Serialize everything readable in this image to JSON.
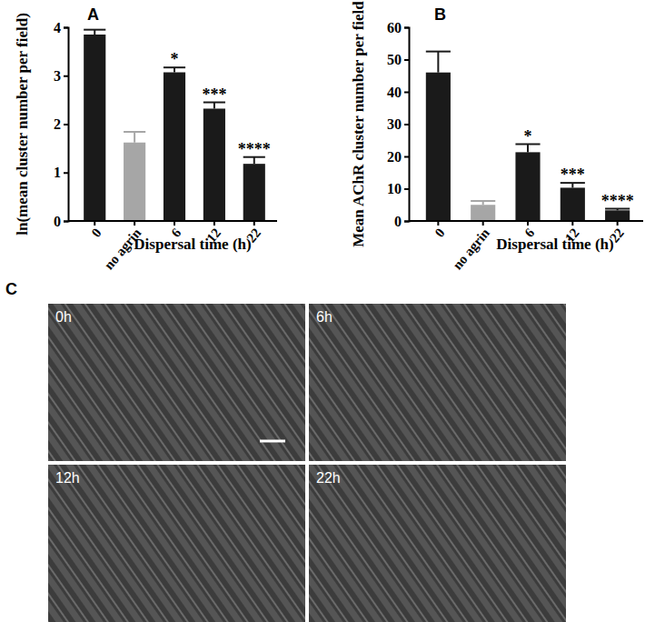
{
  "chart_data": [
    {
      "type": "bar",
      "y_label": "ln(mean cluster number per field)",
      "x_label": "Dispersal time (h)",
      "categories": [
        "0",
        "no agrin",
        "6",
        "12",
        "22"
      ],
      "values": [
        3.85,
        1.62,
        3.07,
        2.32,
        1.18
      ],
      "errors": [
        0.1,
        0.22,
        0.1,
        0.13,
        0.14
      ],
      "significance": [
        null,
        null,
        "*",
        "***",
        "****"
      ],
      "colors": [
        "#1a1a1a",
        "#a6a6a6",
        "#1a1a1a",
        "#1a1a1a",
        "#1a1a1a"
      ],
      "ylim": [
        0,
        4
      ],
      "yticks": [
        0,
        1,
        2,
        3,
        4
      ]
    },
    {
      "type": "bar",
      "y_label": "Mean AChR cluster number per field",
      "x_label": "Dispersal time (h)",
      "categories": [
        "0",
        "no agrin",
        "6",
        "12",
        "22"
      ],
      "values": [
        46,
        5,
        21.3,
        10.3,
        3.3
      ],
      "errors": [
        6.5,
        1.2,
        2.5,
        1.5,
        0.5
      ],
      "significance": [
        null,
        null,
        "*",
        "***",
        "****"
      ],
      "colors": [
        "#1a1a1a",
        "#a6a6a6",
        "#1a1a1a",
        "#1a1a1a",
        "#1a1a1a"
      ],
      "ylim": [
        0,
        60
      ],
      "yticks": [
        0,
        10,
        20,
        30,
        40,
        50,
        60
      ]
    }
  ],
  "figure": {
    "panel_labels": [
      "A",
      "B",
      "C"
    ],
    "image_labels": [
      "0h",
      "6h",
      "12h",
      "22h"
    ]
  }
}
